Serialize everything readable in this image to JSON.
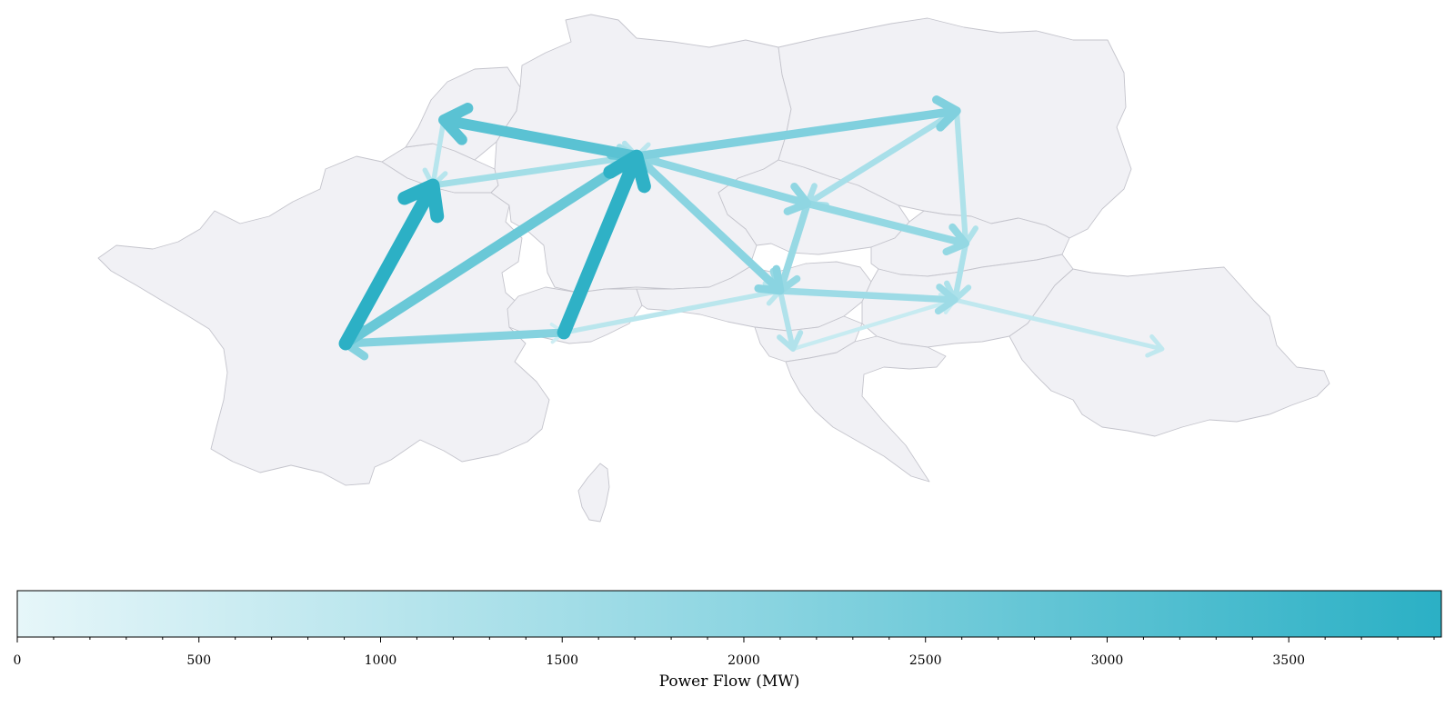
{
  "colorbar": {
    "label": "Power Flow (MW)",
    "min": 0,
    "max": 3920,
    "major_ticks": [
      0,
      500,
      1000,
      1500,
      2000,
      2500,
      3000,
      3500
    ],
    "minor_step": 100,
    "color_low": "#e6f6f9",
    "color_high": "#2bb0c5"
  },
  "colors": {
    "land": "#f1f1f5",
    "border": "#c4c4cc",
    "background": "#ffffff"
  },
  "flows": [
    {
      "from": "FR",
      "to": "BE",
      "mw": 3900
    },
    {
      "from": "CH",
      "to": "DE",
      "mw": 3850
    },
    {
      "from": "FR",
      "to": "DE",
      "mw": 2700
    },
    {
      "from": "DE",
      "to": "NL",
      "mw": 3000
    },
    {
      "from": "DE",
      "to": "PL",
      "mw": 2250
    },
    {
      "from": "CH",
      "to": "FR",
      "mw": 2150
    },
    {
      "from": "DE",
      "to": "AT",
      "mw": 2050
    },
    {
      "from": "DE",
      "to": "CZ",
      "mw": 1950
    },
    {
      "from": "CZ",
      "to": "SK",
      "mw": 1850
    },
    {
      "from": "CZ",
      "to": "AT",
      "mw": 1750
    },
    {
      "from": "AT",
      "to": "HU",
      "mw": 1650
    },
    {
      "from": "AT",
      "to": "DE",
      "mw": 1600
    },
    {
      "from": "BE",
      "to": "DE",
      "mw": 1500
    },
    {
      "from": "PL",
      "to": "CZ",
      "mw": 1400
    },
    {
      "from": "SK",
      "to": "HU",
      "mw": 1300
    },
    {
      "from": "PL",
      "to": "SK",
      "mw": 1250
    },
    {
      "from": "AT",
      "to": "SI",
      "mw": 1200
    },
    {
      "from": "NL",
      "to": "DE",
      "mw": 1150
    },
    {
      "from": "NL",
      "to": "BE",
      "mw": 1050
    },
    {
      "from": "CH",
      "to": "AT",
      "mw": 1000
    },
    {
      "from": "PL",
      "to": "DE",
      "mw": 950
    },
    {
      "from": "HU",
      "to": "RO",
      "mw": 850
    },
    {
      "from": "SI",
      "to": "HU",
      "mw": 700
    },
    {
      "from": "FR",
      "to": "CH",
      "mw": 550
    },
    {
      "from": "CZ",
      "to": "DE",
      "mw": 500
    },
    {
      "from": "BE",
      "to": "DE",
      "mw": 350
    }
  ]
}
